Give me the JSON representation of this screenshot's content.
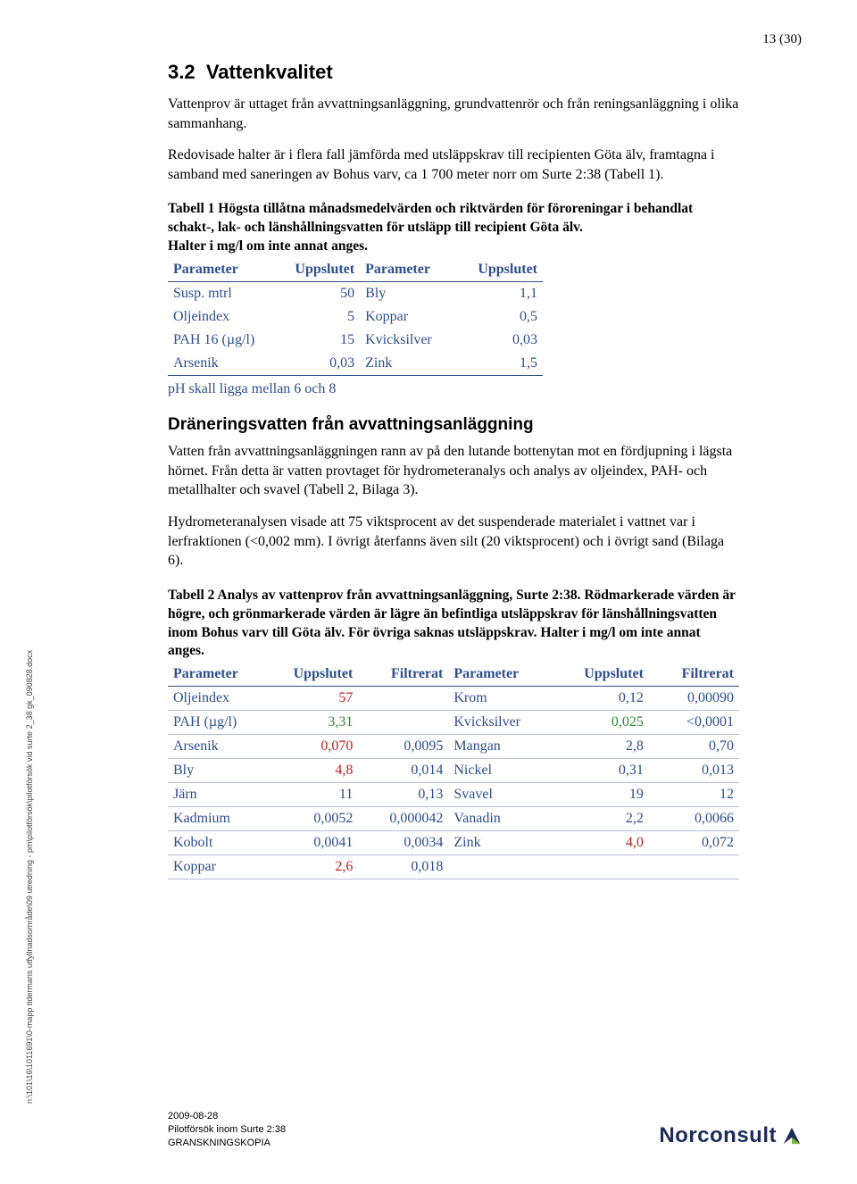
{
  "page_number": "13 (30)",
  "section": {
    "number": "3.2",
    "title": "Vattenkvalitet",
    "para1": "Vattenprov är uttaget från avvattningsanläggning, grundvattenrör och från reningsanläggning i olika sammanhang.",
    "para2": "Redovisade halter är i flera fall jämförda med utsläppskrav till recipienten Göta älv, framtagna i samband med saneringen av Bohus varv, ca 1 700 meter norr om Surte 2:38 (Tabell 1)."
  },
  "table1": {
    "caption_line1": "Tabell 1  Högsta tillåtna månadsmedelvärden och riktvärden för föroreningar i behandlat schakt-, lak- och länshållningsvatten för utsläpp till recipient Göta älv.",
    "caption_line2": "Halter i mg/l om inte annat anges.",
    "headers": [
      "Parameter",
      "Uppslutet",
      "Parameter",
      "Uppslutet"
    ],
    "rows": [
      [
        "Susp. mtrl",
        "50",
        "Bly",
        "1,1"
      ],
      [
        "Oljeindex",
        "5",
        "Koppar",
        "0,5"
      ],
      [
        "PAH 16 (µg/l)",
        "15",
        "Kvicksilver",
        "0,03"
      ],
      [
        "Arsenik",
        "0,03",
        "Zink",
        "1,5"
      ]
    ],
    "ph_note": "pH skall ligga mellan 6 och 8"
  },
  "subsection": {
    "heading": "Dräneringsvatten från avvattningsanläggning",
    "para1": "Vatten från avvattningsanläggningen rann av på den lutande bottenyt­an mot en fördjupning i lägsta hörnet. Från detta är vatten provtaget för hydrometeranalys och analys av oljeindex, PAH- och metallhalter och svavel (Tabell 2, Bilaga 3).",
    "para2": "Hydrometeranalysen visade att 75 viktsprocent av det suspenderade materialet i vattnet var i lerfraktionen (<0,002 mm). I övrigt återfanns även silt (20 viktsprocent) och i övrigt sand (Bilaga 6)."
  },
  "table2": {
    "caption": "Tabell 2  Analys av vattenprov från avvattningsanläggning, Surte 2:38. Rödmarkerade värden är högre, och grönmarkerade värden är lägre än befintliga utsläppskrav för länshållningsvatten inom Bohus varv till Göta älv. För övriga saknas utsläppskrav. Halter i mg/l om inte annat anges.",
    "headers": [
      "Parameter",
      "Uppslutet",
      "Filtrerat",
      "Parameter",
      "Uppslutet",
      "Filtrerat"
    ],
    "rows": [
      {
        "p1": "Oljeindex",
        "u1": "57",
        "u1c": "red",
        "f1": "",
        "p2": "Krom",
        "u2": "0,12",
        "u2c": "blue",
        "f2": "0,00090"
      },
      {
        "p1": "PAH (µg/l)",
        "u1": "3,31",
        "u1c": "green",
        "f1": "",
        "p2": "Kvicksilver",
        "u2": "0,025",
        "u2c": "green",
        "f2": "<0,0001"
      },
      {
        "p1": "Arsenik",
        "u1": "0,070",
        "u1c": "red",
        "f1": "0,0095",
        "p2": "Mangan",
        "u2": "2,8",
        "u2c": "blue",
        "f2": "0,70"
      },
      {
        "p1": "Bly",
        "u1": "4,8",
        "u1c": "red",
        "f1": "0,014",
        "p2": "Nickel",
        "u2": "0,31",
        "u2c": "blue",
        "f2": "0,013"
      },
      {
        "p1": "Järn",
        "u1": "11",
        "u1c": "blue",
        "f1": "0,13",
        "p2": "Svavel",
        "u2": "19",
        "u2c": "blue",
        "f2": "12"
      },
      {
        "p1": "Kadmium",
        "u1": "0,0052",
        "u1c": "blue",
        "f1": "0,000042",
        "p2": "Vanadin",
        "u2": "2,2",
        "u2c": "blue",
        "f2": "0,0066"
      },
      {
        "p1": "Kobolt",
        "u1": "0,0041",
        "u1c": "blue",
        "f1": "0,0034",
        "p2": "Zink",
        "u2": "4,0",
        "u2c": "red",
        "f2": "0,072"
      },
      {
        "p1": "Koppar",
        "u1": "2,6",
        "u1c": "red",
        "f1": "0,018",
        "p2": "",
        "u2": "",
        "u2c": "",
        "f2": ""
      }
    ]
  },
  "sidetext": "n:\\101\\16\\1011691\\0-mapp tidermans utfyllnadsområde\\09 utredning - pm\\pilotförsök\\pilotförsök vid surte 2_38  gk_090828.docx",
  "footer": {
    "date": "2009-08-28",
    "line2": "Pilotförsök inom Surte 2:38",
    "line3": "GRANSKNINGSKOPIA"
  },
  "logo_text": "Norconsult"
}
